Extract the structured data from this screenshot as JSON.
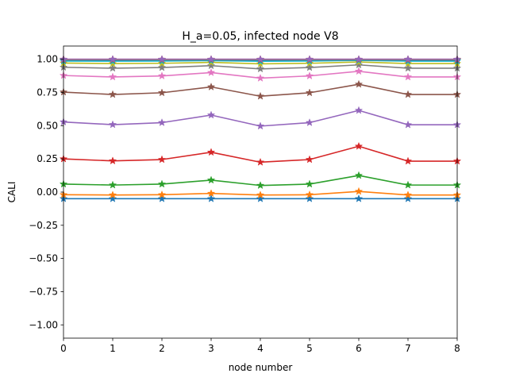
{
  "chart_data": {
    "type": "line",
    "title": "H_a=0.05, infected node V8",
    "xlabel": "node number",
    "ylabel": "CALI",
    "xlim": [
      0,
      8
    ],
    "ylim": [
      -1.1,
      1.1
    ],
    "xticks": [
      "0",
      "1",
      "2",
      "3",
      "4",
      "5",
      "6",
      "7",
      "8"
    ],
    "yticks": [
      "−1.00",
      "−0.75",
      "−0.50",
      "−0.25",
      "0.00",
      "0.25",
      "0.50",
      "0.75",
      "1.00"
    ],
    "ytick_values": [
      -1.0,
      -0.75,
      -0.5,
      -0.25,
      0.0,
      0.25,
      0.5,
      0.75,
      1.0
    ],
    "grid": false,
    "marker": "star",
    "x": [
      0,
      1,
      2,
      3,
      4,
      5,
      6,
      7,
      8
    ],
    "series": [
      {
        "color": "#1f77b4",
        "values": [
          -0.05,
          -0.05,
          -0.05,
          -0.05,
          -0.05,
          -0.05,
          -0.05,
          -0.05,
          -0.05
        ]
      },
      {
        "color": "#ff7f0e",
        "values": [
          -0.02,
          -0.022,
          -0.02,
          -0.01,
          -0.022,
          -0.02,
          0.005,
          -0.022,
          -0.022
        ]
      },
      {
        "color": "#2ca02c",
        "values": [
          0.06,
          0.053,
          0.06,
          0.09,
          0.05,
          0.06,
          0.125,
          0.053,
          0.053
        ]
      },
      {
        "color": "#d62728",
        "values": [
          0.25,
          0.235,
          0.245,
          0.3,
          0.225,
          0.245,
          0.345,
          0.233,
          0.233
        ]
      },
      {
        "color": "#9467bd",
        "values": [
          0.528,
          0.508,
          0.523,
          0.58,
          0.497,
          0.523,
          0.615,
          0.507,
          0.507
        ]
      },
      {
        "color": "#8c564b",
        "values": [
          0.753,
          0.735,
          0.748,
          0.792,
          0.722,
          0.748,
          0.812,
          0.735,
          0.735
        ]
      },
      {
        "color": "#e377c2",
        "values": [
          0.878,
          0.867,
          0.875,
          0.9,
          0.858,
          0.875,
          0.91,
          0.867,
          0.867
        ]
      },
      {
        "color": "#7f7f7f",
        "values": [
          0.94,
          0.933,
          0.938,
          0.952,
          0.928,
          0.938,
          0.958,
          0.933,
          0.933
        ]
      },
      {
        "color": "#bcbd22",
        "values": [
          0.972,
          0.968,
          0.97,
          0.977,
          0.966,
          0.97,
          0.98,
          0.968,
          0.968
        ]
      },
      {
        "color": "#17becf",
        "values": [
          0.987,
          0.986,
          0.987,
          0.99,
          0.985,
          0.987,
          0.992,
          0.986,
          0.986
        ]
      },
      {
        "color": "#1f77b4",
        "values": [
          0.994,
          0.993,
          0.994,
          0.995,
          0.993,
          0.994,
          0.996,
          0.993,
          0.993
        ]
      },
      {
        "color": "#ff7f0e",
        "values": [
          0.997,
          0.997,
          0.997,
          0.998,
          0.997,
          0.997,
          0.998,
          0.997,
          0.997
        ]
      },
      {
        "color": "#2ca02c",
        "values": [
          0.999,
          0.999,
          0.999,
          0.999,
          0.999,
          0.999,
          0.999,
          0.999,
          0.999
        ]
      },
      {
        "color": "#d62728",
        "values": [
          1.0,
          1.0,
          1.0,
          1.0,
          1.0,
          1.0,
          1.0,
          1.0,
          1.0
        ]
      },
      {
        "color": "#9467bd",
        "values": [
          1.0,
          1.0,
          1.0,
          1.0,
          1.0,
          1.0,
          1.0,
          1.0,
          1.0
        ]
      }
    ]
  }
}
